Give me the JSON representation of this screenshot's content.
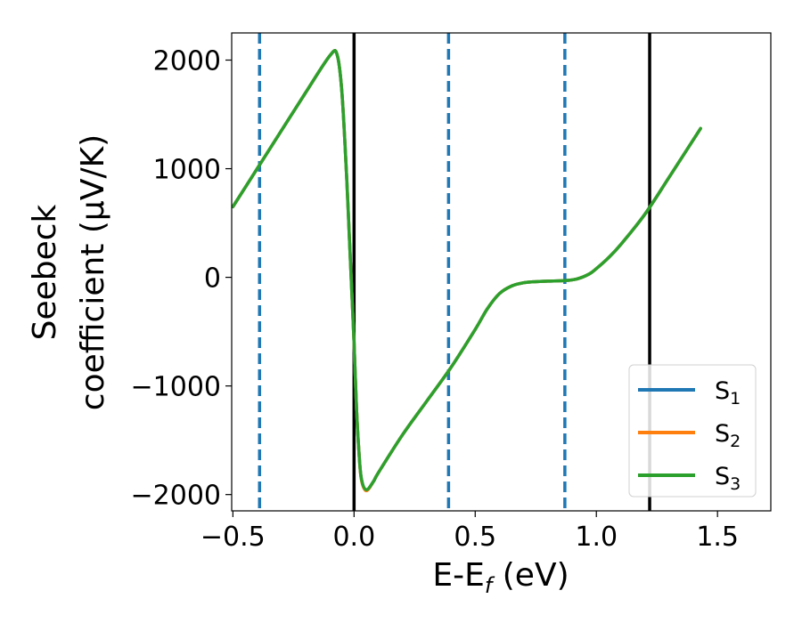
{
  "chart_data": {
    "type": "line",
    "xlabel": "E-E",
    "xlabel_sub": "f",
    "xlabel_unit": " (eV)",
    "ylabel_line1": "Seebeck",
    "ylabel_line2": "coefficient  (μV/K)",
    "xlim": [
      -0.505,
      1.72
    ],
    "ylim": [
      -2150,
      2250
    ],
    "xticks": [
      -0.5,
      0.0,
      0.5,
      1.0,
      1.5
    ],
    "xtick_labels": [
      "−0.5",
      "0.0",
      "0.5",
      "1.0",
      "1.5"
    ],
    "yticks": [
      2000,
      1000,
      0,
      -1000,
      -2000
    ],
    "ytick_labels": [
      "2000",
      "1000",
      "0",
      "−1000",
      "−2000"
    ],
    "vlines_solid": [
      0.0,
      1.22
    ],
    "vlines_dashed": [
      -0.39,
      0.39,
      0.87
    ],
    "vline_solid_color": "#000000",
    "vline_dashed_color": "#1f77b4",
    "legend_position": "lower-right",
    "x": [
      -0.5,
      -0.4,
      -0.3,
      -0.2,
      -0.1,
      -0.07,
      -0.05,
      -0.03,
      -0.02,
      -0.01,
      0.0,
      0.01,
      0.02,
      0.03,
      0.05,
      0.08,
      0.1,
      0.2,
      0.3,
      0.4,
      0.5,
      0.55,
      0.6,
      0.65,
      0.7,
      0.75,
      0.8,
      0.87,
      0.92,
      0.97,
      1.0,
      1.05,
      1.1,
      1.2,
      1.3,
      1.43
    ],
    "series": [
      {
        "name": "S",
        "sub": "1",
        "color": "#1f77b4",
        "values": [
          650,
          1000,
          1350,
          1700,
          2040,
          2050,
          1700,
          900,
          400,
          -100,
          -600,
          -1200,
          -1600,
          -1850,
          -1960,
          -1880,
          -1800,
          -1450,
          -1140,
          -830,
          -480,
          -290,
          -150,
          -80,
          -50,
          -40,
          -35,
          -30,
          -15,
          30,
          80,
          180,
          300,
          580,
          920,
          1370
        ]
      },
      {
        "name": "S",
        "sub": "2",
        "color": "#ff7f0e",
        "values": [
          650,
          1000,
          1350,
          1700,
          2040,
          2050,
          1700,
          900,
          400,
          -100,
          -600,
          -1200,
          -1600,
          -1860,
          -1965,
          -1880,
          -1800,
          -1450,
          -1140,
          -830,
          -480,
          -290,
          -150,
          -80,
          -50,
          -40,
          -35,
          -30,
          -15,
          30,
          80,
          180,
          300,
          580,
          920,
          1370
        ]
      },
      {
        "name": "S",
        "sub": "3",
        "color": "#2ca02c",
        "values": [
          650,
          1000,
          1350,
          1700,
          2040,
          2050,
          1700,
          900,
          400,
          -100,
          -600,
          -1200,
          -1600,
          -1850,
          -1955,
          -1880,
          -1800,
          -1450,
          -1140,
          -830,
          -480,
          -290,
          -150,
          -80,
          -50,
          -40,
          -35,
          -30,
          -15,
          30,
          80,
          180,
          300,
          580,
          920,
          1370
        ]
      }
    ]
  }
}
